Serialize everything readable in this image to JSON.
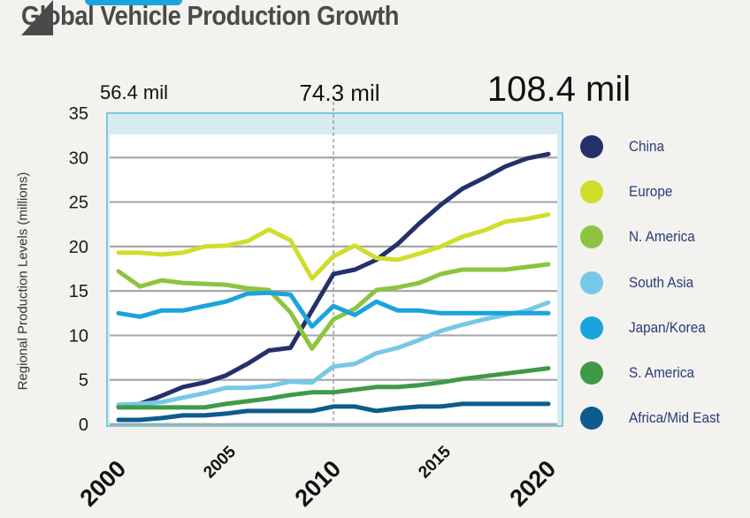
{
  "chart_data": {
    "type": "line",
    "title": "Global Vehicle Production Growth",
    "ylabel": "Regional Production Levels (millions)",
    "xlabel": "",
    "ylim": [
      0,
      35
    ],
    "xlim": [
      2000,
      2020
    ],
    "yticks": [
      "0",
      "5",
      "10",
      "15",
      "20",
      "25",
      "30",
      "35"
    ],
    "xticks": [
      "2000",
      "2005",
      "2010",
      "2015",
      "2020"
    ],
    "grid": true,
    "legend_position": "right",
    "annotations": [
      {
        "year": 2000,
        "label": "56.4 mil"
      },
      {
        "year": 2010,
        "label": "74.3 mil"
      },
      {
        "year": 2020,
        "label": "108.4 mil"
      }
    ],
    "x": [
      2000,
      2001,
      2002,
      2003,
      2004,
      2005,
      2006,
      2007,
      2008,
      2009,
      2010,
      2011,
      2012,
      2013,
      2014,
      2015,
      2016,
      2017,
      2018,
      2019,
      2020
    ],
    "series": [
      {
        "name": "China",
        "color": "#24306a",
        "values": [
          2.0,
          2.3,
          3.2,
          4.2,
          4.7,
          5.5,
          6.8,
          8.3,
          8.6,
          12.8,
          16.9,
          17.4,
          18.5,
          20.3,
          22.6,
          24.7,
          26.5,
          27.7,
          29.0,
          29.9,
          30.4
        ]
      },
      {
        "name": "Europe",
        "color": "#cfdd2c",
        "values": [
          19.3,
          19.3,
          19.1,
          19.3,
          20.0,
          20.1,
          20.6,
          21.9,
          20.7,
          16.4,
          18.9,
          20.1,
          18.7,
          18.5,
          19.2,
          20.0,
          21.1,
          21.8,
          22.8,
          23.1,
          23.6
        ]
      },
      {
        "name": "N. America",
        "color": "#8dc43f",
        "values": [
          17.2,
          15.5,
          16.2,
          15.9,
          15.8,
          15.7,
          15.3,
          15.1,
          12.6,
          8.5,
          11.8,
          13.0,
          15.1,
          15.4,
          15.9,
          16.9,
          17.4,
          17.4,
          17.4,
          17.7,
          18.0
        ]
      },
      {
        "name": "South Asia",
        "color": "#77c8e6",
        "values": [
          2.2,
          2.3,
          2.5,
          3.0,
          3.5,
          4.1,
          4.1,
          4.3,
          4.8,
          4.7,
          6.5,
          6.8,
          8.0,
          8.6,
          9.5,
          10.5,
          11.2,
          11.8,
          12.3,
          12.8,
          13.7
        ]
      },
      {
        "name": "Japan/Korea",
        "color": "#1ba3dc",
        "values": [
          12.5,
          12.1,
          12.8,
          12.8,
          13.3,
          13.8,
          14.7,
          14.8,
          14.6,
          11.0,
          13.3,
          12.3,
          13.8,
          12.8,
          12.8,
          12.5,
          12.5,
          12.5,
          12.5,
          12.5,
          12.5
        ]
      },
      {
        "name": "S. America",
        "color": "#3f9a48",
        "values": [
          1.9,
          1.9,
          1.9,
          1.9,
          1.9,
          2.3,
          2.6,
          2.9,
          3.3,
          3.6,
          3.6,
          3.9,
          4.2,
          4.2,
          4.4,
          4.7,
          5.1,
          5.4,
          5.7,
          6.0,
          6.3
        ]
      },
      {
        "name": "Africa/Mid East",
        "color": "#0d5b8f",
        "values": [
          0.5,
          0.5,
          0.7,
          1.0,
          1.0,
          1.2,
          1.5,
          1.5,
          1.5,
          1.5,
          2.0,
          2.0,
          1.5,
          1.8,
          2.0,
          2.0,
          2.3,
          2.3,
          2.3,
          2.3,
          2.3
        ]
      }
    ]
  }
}
